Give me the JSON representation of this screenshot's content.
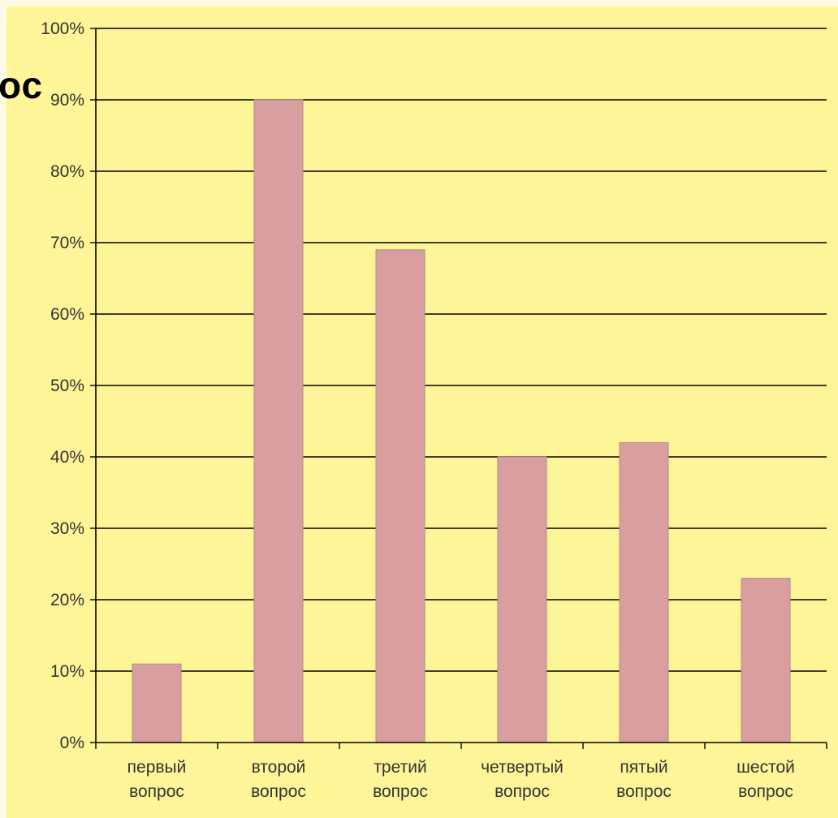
{
  "overlay_text": "ос",
  "colors": {
    "background": "#fdf597",
    "bar_fill": "#d89ea0",
    "bar_stroke": "#b88688",
    "grid": "#000000",
    "text": "#333333"
  },
  "chart_data": {
    "type": "bar",
    "title": "",
    "xlabel": "",
    "ylabel": "",
    "categories": [
      [
        "первый",
        "вопрос"
      ],
      [
        "второй",
        "вопрос"
      ],
      [
        "третий",
        "вопрос"
      ],
      [
        "четвертый",
        "вопрос"
      ],
      [
        "пятый",
        "вопрос"
      ],
      [
        "шестой",
        "вопрос"
      ]
    ],
    "values": [
      11,
      90,
      69,
      40,
      42,
      23
    ],
    "ylim": [
      0,
      100
    ],
    "y_ticks": [
      "0%",
      "10%",
      "20%",
      "30%",
      "40%",
      "50%",
      "60%",
      "70%",
      "80%",
      "90%",
      "100%"
    ],
    "grid": true,
    "legend": "none"
  }
}
